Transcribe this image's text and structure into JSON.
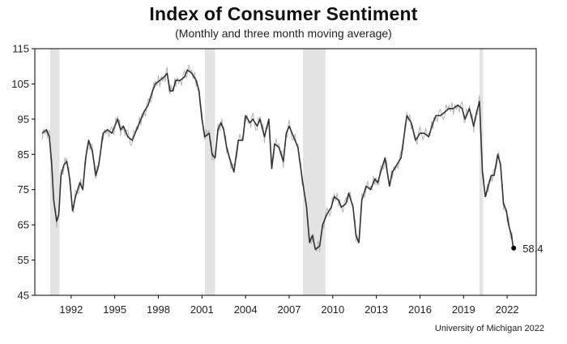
{
  "chart_data": {
    "type": "line",
    "title": "Index of Consumer Sentiment",
    "subtitle": "(Monthly and three month moving average)",
    "source": "University of Michigan 2022",
    "ylim": [
      45,
      115
    ],
    "xlim": [
      1989.5,
      2024.0
    ],
    "y_ticks": [
      45,
      55,
      65,
      75,
      85,
      95,
      105,
      115
    ],
    "y_tick_labels": [
      "45",
      "55",
      "65",
      "75",
      "85",
      "95",
      "105",
      "115"
    ],
    "x_ticks": [
      1992,
      1995,
      1998,
      2001,
      2004,
      2007,
      2010,
      2013,
      2016,
      2019,
      2022
    ],
    "x_tick_labels": [
      "1992",
      "1995",
      "1998",
      "2001",
      "2004",
      "2007",
      "2010",
      "2013",
      "2016",
      "2019",
      "2022"
    ],
    "grid": false,
    "legend": "none",
    "colors": {
      "line": "#333333",
      "monthly": "#b5b5b5",
      "recession": "#e3e3e3",
      "axis": "#000000"
    },
    "recessions": [
      [
        1990.55,
        1991.2
      ],
      [
        2001.2,
        2001.9
      ],
      [
        2007.95,
        2009.5
      ],
      [
        2020.1,
        2020.35
      ]
    ],
    "series": [
      {
        "values": [
          [
            1990.0,
            91
          ],
          [
            1990.3,
            92
          ],
          [
            1990.5,
            90
          ],
          [
            1990.65,
            83
          ],
          [
            1990.8,
            72
          ],
          [
            1991.0,
            66
          ],
          [
            1991.15,
            68
          ],
          [
            1991.3,
            79
          ],
          [
            1991.5,
            82
          ],
          [
            1991.7,
            83
          ],
          [
            1991.9,
            78
          ],
          [
            1992.1,
            69
          ],
          [
            1992.3,
            73
          ],
          [
            1992.6,
            77
          ],
          [
            1992.8,
            75
          ],
          [
            1993.0,
            84
          ],
          [
            1993.2,
            89
          ],
          [
            1993.45,
            86
          ],
          [
            1993.7,
            79
          ],
          [
            1993.9,
            82
          ],
          [
            1994.2,
            91
          ],
          [
            1994.5,
            92
          ],
          [
            1994.8,
            91
          ],
          [
            1995.0,
            93
          ],
          [
            1995.2,
            95
          ],
          [
            1995.4,
            92
          ],
          [
            1995.6,
            93
          ],
          [
            1995.9,
            90
          ],
          [
            1996.2,
            89
          ],
          [
            1996.5,
            92
          ],
          [
            1996.8,
            95
          ],
          [
            1997.0,
            97
          ],
          [
            1997.3,
            99
          ],
          [
            1997.6,
            103
          ],
          [
            1997.8,
            105
          ],
          [
            1998.1,
            106
          ],
          [
            1998.4,
            107
          ],
          [
            1998.6,
            108
          ],
          [
            1998.8,
            103
          ],
          [
            1999.0,
            103
          ],
          [
            1999.2,
            106
          ],
          [
            1999.5,
            106
          ],
          [
            1999.8,
            107
          ],
          [
            2000.0,
            109
          ],
          [
            2000.3,
            108
          ],
          [
            2000.6,
            106
          ],
          [
            2000.8,
            103
          ],
          [
            2001.0,
            95
          ],
          [
            2001.2,
            90
          ],
          [
            2001.5,
            91
          ],
          [
            2001.7,
            85
          ],
          [
            2001.9,
            84
          ],
          [
            2002.1,
            92
          ],
          [
            2002.3,
            94
          ],
          [
            2002.5,
            92
          ],
          [
            2002.7,
            87
          ],
          [
            2002.9,
            84
          ],
          [
            2003.2,
            80
          ],
          [
            2003.5,
            89
          ],
          [
            2003.8,
            89
          ],
          [
            2004.0,
            96
          ],
          [
            2004.3,
            94
          ],
          [
            2004.5,
            95
          ],
          [
            2004.8,
            93
          ],
          [
            2005.0,
            95
          ],
          [
            2005.3,
            90
          ],
          [
            2005.6,
            95
          ],
          [
            2005.8,
            81
          ],
          [
            2006.0,
            88
          ],
          [
            2006.3,
            87
          ],
          [
            2006.6,
            83
          ],
          [
            2006.8,
            91
          ],
          [
            2007.0,
            93
          ],
          [
            2007.3,
            90
          ],
          [
            2007.6,
            87
          ],
          [
            2007.9,
            78
          ],
          [
            2008.2,
            70
          ],
          [
            2008.4,
            60
          ],
          [
            2008.6,
            62
          ],
          [
            2008.8,
            58
          ],
          [
            2009.1,
            59
          ],
          [
            2009.3,
            65
          ],
          [
            2009.6,
            68
          ],
          [
            2009.9,
            70
          ],
          [
            2010.1,
            73
          ],
          [
            2010.4,
            72
          ],
          [
            2010.6,
            70
          ],
          [
            2010.9,
            71
          ],
          [
            2011.1,
            74
          ],
          [
            2011.4,
            70
          ],
          [
            2011.6,
            62
          ],
          [
            2011.8,
            60
          ],
          [
            2012.0,
            72
          ],
          [
            2012.3,
            76
          ],
          [
            2012.6,
            75
          ],
          [
            2012.9,
            78
          ],
          [
            2013.1,
            77
          ],
          [
            2013.3,
            80
          ],
          [
            2013.6,
            84
          ],
          [
            2013.9,
            76
          ],
          [
            2014.1,
            80
          ],
          [
            2014.4,
            82
          ],
          [
            2014.7,
            84
          ],
          [
            2014.9,
            90
          ],
          [
            2015.1,
            96
          ],
          [
            2015.4,
            94
          ],
          [
            2015.7,
            89
          ],
          [
            2016.0,
            91
          ],
          [
            2016.3,
            91
          ],
          [
            2016.6,
            90
          ],
          [
            2016.9,
            94
          ],
          [
            2017.1,
            96
          ],
          [
            2017.4,
            96
          ],
          [
            2017.7,
            97
          ],
          [
            2018.0,
            98
          ],
          [
            2018.3,
            98
          ],
          [
            2018.6,
            99
          ],
          [
            2018.9,
            98
          ],
          [
            2019.1,
            95
          ],
          [
            2019.4,
            98
          ],
          [
            2019.7,
            93
          ],
          [
            2019.9,
            97
          ],
          [
            2020.1,
            100
          ],
          [
            2020.3,
            80
          ],
          [
            2020.5,
            73
          ],
          [
            2020.7,
            76
          ],
          [
            2020.9,
            79
          ],
          [
            2021.1,
            79
          ],
          [
            2021.35,
            85
          ],
          [
            2021.55,
            82
          ],
          [
            2021.75,
            71
          ],
          [
            2021.95,
            69
          ],
          [
            2022.1,
            65
          ],
          [
            2022.3,
            62
          ],
          [
            2022.4,
            59
          ]
        ]
      }
    ],
    "annotations": [
      {
        "x": 2022.45,
        "y": 58.4,
        "text": "58.4"
      }
    ]
  }
}
